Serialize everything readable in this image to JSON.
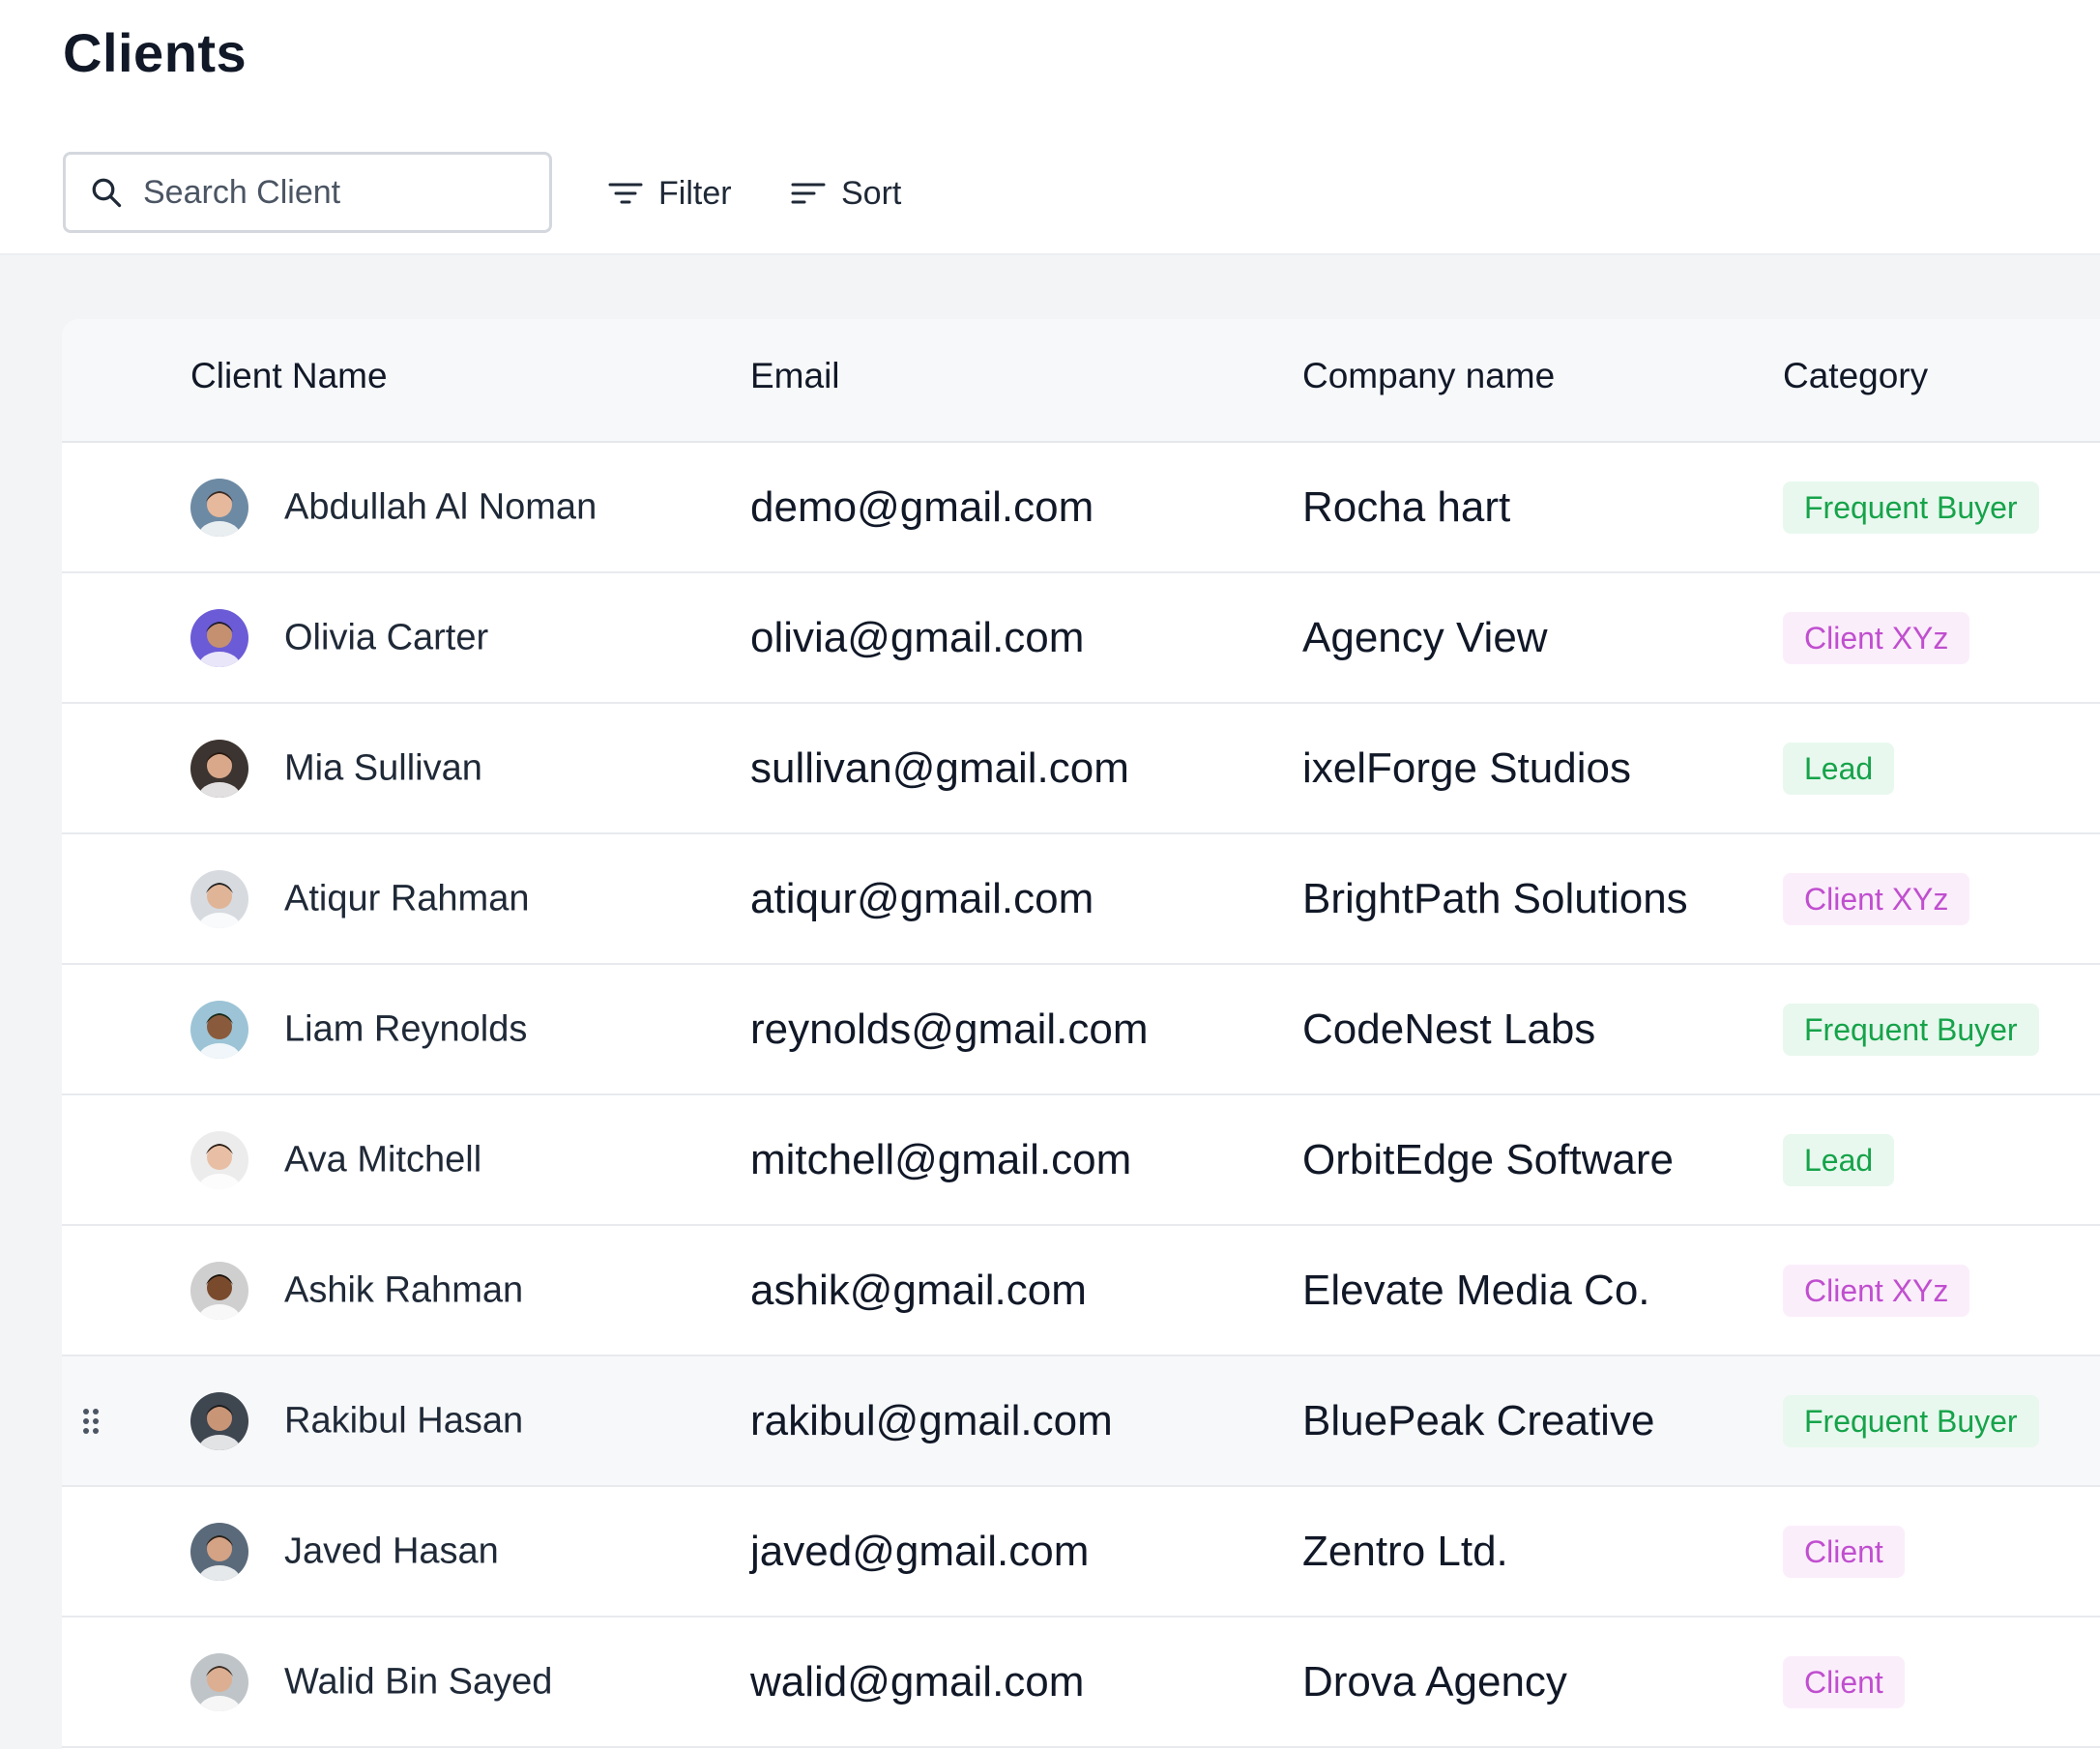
{
  "page": {
    "title": "Clients"
  },
  "toolbar": {
    "search_placeholder": "Search Client",
    "filter_label": "Filter",
    "sort_label": "Sort"
  },
  "table": {
    "columns": [
      "Client Name",
      "Email",
      "Company name",
      "Category"
    ],
    "rows": [
      {
        "name": "Abdullah Al Noman",
        "email": "demo@gmail.com",
        "company": "Rocha hart",
        "category": "Frequent Buyer",
        "category_color": "green",
        "avatar_bg": "#6d8aa4",
        "avatar_skin": "#e6b89c",
        "avatar_hair": "#3b2a20"
      },
      {
        "name": "Olivia Carter",
        "email": "olivia@gmail.com",
        "company": "Agency View",
        "category": "Client XYz",
        "category_color": "pink",
        "avatar_bg": "#6b5bd6",
        "avatar_skin": "#c49070",
        "avatar_hair": "#1d1b2e"
      },
      {
        "name": "Mia Sullivan",
        "email": "sullivan@gmail.com",
        "company": "ixelForge Studios",
        "category": "Lead",
        "category_color": "green",
        "avatar_bg": "#3c3430",
        "avatar_skin": "#d9a88a",
        "avatar_hair": "#2a1a12"
      },
      {
        "name": "Atiqur Rahman",
        "email": "atiqur@gmail.com",
        "company": "BrightPath Solutions",
        "category": "Client XYz",
        "category_color": "pink",
        "avatar_bg": "#d7dbe0",
        "avatar_skin": "#e0b497",
        "avatar_hair": "#222222"
      },
      {
        "name": "Liam Reynolds",
        "email": "reynolds@gmail.com",
        "company": "CodeNest Labs",
        "category": "Frequent Buyer",
        "category_color": "green",
        "avatar_bg": "#9cc4d6",
        "avatar_skin": "#8a5a3c",
        "avatar_hair": "#1a2a1a"
      },
      {
        "name": "Ava Mitchell",
        "email": "mitchell@gmail.com",
        "company": "OrbitEdge Software",
        "category": "Lead",
        "category_color": "green",
        "avatar_bg": "#ececec",
        "avatar_skin": "#e8bfa4",
        "avatar_hair": "#2b1d14"
      },
      {
        "name": "Ashik Rahman",
        "email": "ashik@gmail.com",
        "company": "Elevate Media Co.",
        "category": "Client XYz",
        "category_color": "pink",
        "avatar_bg": "#cfcfcf",
        "avatar_skin": "#7a4a2c",
        "avatar_hair": "#1a120c"
      },
      {
        "name": "Rakibul Hasan",
        "email": "rakibul@gmail.com",
        "company": "BluePeak Creative",
        "category": "Frequent Buyer",
        "category_color": "green",
        "avatar_bg": "#3e4650",
        "avatar_skin": "#c99577",
        "avatar_hair": "#1a1a1a",
        "hover": true
      },
      {
        "name": "Javed Hasan",
        "email": "javed@gmail.com",
        "company": "Zentro Ltd.",
        "category": "Client",
        "category_color": "pink",
        "avatar_bg": "#5a6a7a",
        "avatar_skin": "#d4a284",
        "avatar_hair": "#2a2018"
      },
      {
        "name": "Walid Bin Sayed",
        "email": "walid@gmail.com",
        "company": "Drova Agency",
        "category": "Client",
        "category_color": "pink",
        "avatar_bg": "#bfc4c8",
        "avatar_skin": "#dcae92",
        "avatar_hair": "#3a2c22"
      }
    ]
  },
  "icons": {
    "search": "search-icon",
    "filter": "filter-icon",
    "sort": "sort-icon",
    "drag": "drag-handle-icon"
  }
}
